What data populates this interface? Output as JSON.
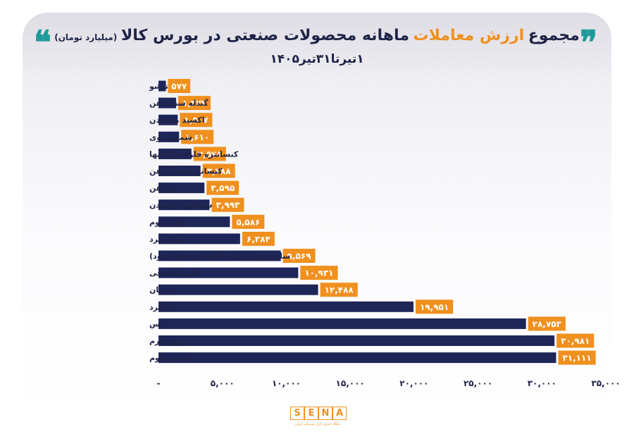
{
  "header": {
    "title_main": "مجموع",
    "title_highlight": "ارزش معاملات",
    "title_rest": "ماهانه محصولات صنعتی در بورس کالا",
    "title_unit": "(میلیارد تومان)",
    "subtitle": "۱تیرتا۳۱تیر۱۴۰۵",
    "quote_open": "❞",
    "quote_close": "❝"
  },
  "footer": {
    "logo_letters": [
      "S",
      "E",
      "N",
      "A"
    ],
    "logo_tagline": "پایگاه خبری بازار سرمایه ایران"
  },
  "colors": {
    "bar": "#1e2557",
    "label_bg": "#f0901e",
    "label_text": "#ffffff",
    "accent": "#1e9a9a"
  },
  "chart_data": {
    "type": "bar",
    "orientation": "horizontal",
    "categories": [
      "تیشو",
      "گندله سنگ آهن",
      "اکسید مولیبدن",
      "شمش روی",
      "کنسانتره فلزات گرانبها",
      "کنسانتره سنگ آهن",
      "تیرآهن",
      "سولفور مولیبدن",
      "آلومینیوم",
      "ورق سرد",
      "سایر ورق(رنگی، گالوانیزه،قلع اندود)",
      "آهن اسفنجی",
      "سیمان",
      "میلگرد",
      "مس",
      "ورق گرم",
      "شمش بلوم"
    ],
    "values": [
      577,
      1374,
      1507,
      1610,
      2576,
      3288,
      3595,
      3993,
      5586,
      6384,
      9569,
      10931,
      12488,
      19951,
      28753,
      30981,
      31111
    ],
    "value_labels": [
      "۵۷۷",
      "۱,۳۷۴",
      "۱,۵۰۷",
      "۱,۶۱۰",
      "۲,۵۷۶",
      "۳,۲۸۸",
      "۳,۵۹۵",
      "۳,۹۹۳",
      "۵,۵۸۶",
      "۶,۳۸۴",
      "۹,۵۶۹",
      "۱۰,۹۳۱",
      "۱۲,۴۸۸",
      "۱۹,۹۵۱",
      "۲۸,۷۵۳",
      "۳۰,۹۸۱",
      "۳۱,۱۱۱"
    ],
    "xlim": [
      0,
      35000
    ],
    "x_ticks": [
      0,
      5000,
      10000,
      15000,
      20000,
      25000,
      30000,
      35000
    ],
    "x_tick_labels": [
      "-",
      "۵,۰۰۰",
      "۱۰,۰۰۰",
      "۱۵,۰۰۰",
      "۲۰,۰۰۰",
      "۲۵,۰۰۰",
      "۳۰,۰۰۰",
      "۳۵,۰۰۰"
    ],
    "grid": false,
    "legend": "none"
  }
}
